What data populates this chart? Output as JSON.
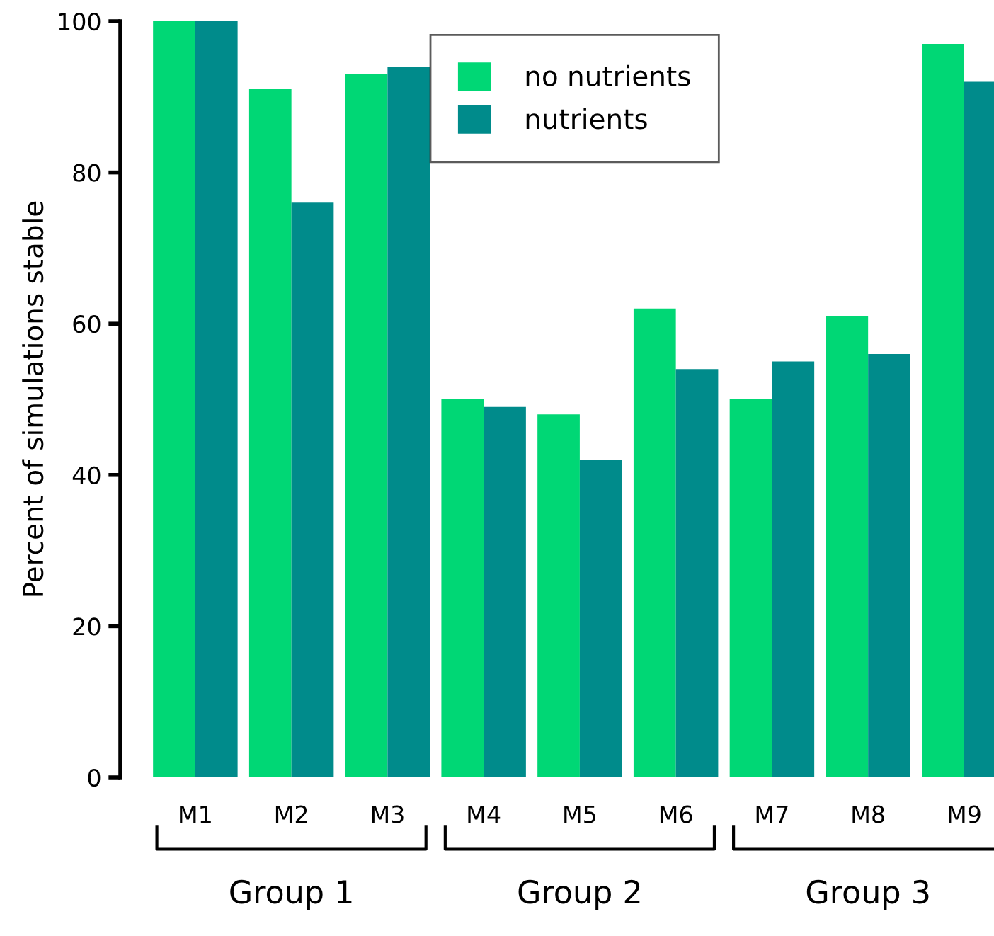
{
  "chart_data": {
    "type": "bar",
    "ylabel": "Percent of simulations stable",
    "categories": [
      "M1",
      "M2",
      "M3",
      "M4",
      "M5",
      "M6",
      "M7",
      "M8",
      "M9"
    ],
    "series": [
      {
        "name": "no nutrients",
        "color": "#00d775",
        "values": [
          100,
          91,
          93,
          50,
          48,
          62,
          50,
          61,
          97
        ]
      },
      {
        "name": "nutrients",
        "color": "#008b8b",
        "values": [
          100,
          76,
          94,
          49,
          42,
          54,
          55,
          56,
          92
        ]
      }
    ],
    "ylim": [
      0,
      100
    ],
    "yticks": [
      0,
      20,
      40,
      60,
      80,
      100
    ],
    "grid": false,
    "legend": "top",
    "annotations": [
      "Group 1",
      "Group 2",
      "Group 3"
    ]
  }
}
